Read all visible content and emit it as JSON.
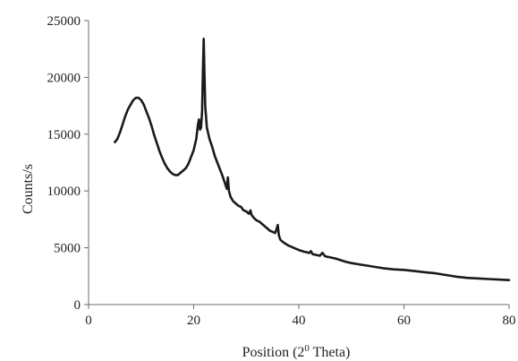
{
  "chart_data": {
    "type": "line",
    "title": "",
    "xlabel": "Position (2",
    "xlabel_sup": "0",
    "xlabel_tail": " Theta)",
    "ylabel": "Counts/s",
    "xlim": [
      0,
      80
    ],
    "ylim": [
      0,
      25000
    ],
    "xticks": [
      0,
      20,
      40,
      60,
      80
    ],
    "yticks": [
      0,
      5000,
      10000,
      15000,
      20000,
      25000
    ],
    "grid": false,
    "legend": "none",
    "series": [
      {
        "color": "#1a1a1a",
        "points": [
          [
            5,
            14300
          ],
          [
            5.5,
            14600
          ],
          [
            6,
            15200
          ],
          [
            6.5,
            15900
          ],
          [
            7,
            16600
          ],
          [
            7.5,
            17200
          ],
          [
            8,
            17600
          ],
          [
            8.5,
            18000
          ],
          [
            9,
            18200
          ],
          [
            9.5,
            18200
          ],
          [
            10,
            18000
          ],
          [
            10.5,
            17600
          ],
          [
            11,
            17000
          ],
          [
            11.5,
            16400
          ],
          [
            12,
            15700
          ],
          [
            12.5,
            14900
          ],
          [
            13,
            14200
          ],
          [
            13.5,
            13500
          ],
          [
            14,
            12900
          ],
          [
            14.5,
            12400
          ],
          [
            15,
            12000
          ],
          [
            15.5,
            11700
          ],
          [
            16,
            11500
          ],
          [
            16.5,
            11400
          ],
          [
            17,
            11400
          ],
          [
            17.5,
            11600
          ],
          [
            18,
            11800
          ],
          [
            18.5,
            12000
          ],
          [
            19,
            12400
          ],
          [
            19.5,
            13000
          ],
          [
            20,
            13600
          ],
          [
            20.5,
            14600
          ],
          [
            20.8,
            15800
          ],
          [
            21.0,
            16300
          ],
          [
            21.2,
            15400
          ],
          [
            21.4,
            15600
          ],
          [
            21.6,
            17000
          ],
          [
            21.75,
            20500
          ],
          [
            21.9,
            23400
          ],
          [
            22.05,
            20500
          ],
          [
            22.2,
            17500
          ],
          [
            22.5,
            15600
          ],
          [
            23,
            14600
          ],
          [
            23.5,
            13900
          ],
          [
            24,
            13100
          ],
          [
            24.5,
            12500
          ],
          [
            25,
            11900
          ],
          [
            25.5,
            11300
          ],
          [
            26,
            10600
          ],
          [
            26.3,
            10200
          ],
          [
            26.5,
            11200
          ],
          [
            26.7,
            10000
          ],
          [
            27,
            9500
          ],
          [
            27.5,
            9100
          ],
          [
            28,
            8900
          ],
          [
            28.5,
            8700
          ],
          [
            29,
            8600
          ],
          [
            29.5,
            8300
          ],
          [
            30,
            8200
          ],
          [
            30.5,
            8000
          ],
          [
            30.8,
            8300
          ],
          [
            31,
            7900
          ],
          [
            31.5,
            7600
          ],
          [
            32,
            7400
          ],
          [
            32.5,
            7300
          ],
          [
            33,
            7100
          ],
          [
            33.5,
            6900
          ],
          [
            34,
            6700
          ],
          [
            34.5,
            6500
          ],
          [
            35,
            6400
          ],
          [
            35.5,
            6300
          ],
          [
            35.8,
            6700
          ],
          [
            36,
            7000
          ],
          [
            36.2,
            6100
          ],
          [
            36.5,
            5700
          ],
          [
            37,
            5500
          ],
          [
            38,
            5200
          ],
          [
            39,
            5000
          ],
          [
            40,
            4800
          ],
          [
            41,
            4650
          ],
          [
            42,
            4550
          ],
          [
            42.3,
            4700
          ],
          [
            42.6,
            4450
          ],
          [
            43,
            4400
          ],
          [
            44,
            4300
          ],
          [
            44.5,
            4550
          ],
          [
            45,
            4250
          ],
          [
            46,
            4150
          ],
          [
            47,
            4050
          ],
          [
            48,
            3900
          ],
          [
            49,
            3750
          ],
          [
            50,
            3650
          ],
          [
            52,
            3500
          ],
          [
            54,
            3350
          ],
          [
            56,
            3200
          ],
          [
            58,
            3100
          ],
          [
            60,
            3050
          ],
          [
            62,
            2950
          ],
          [
            64,
            2850
          ],
          [
            66,
            2750
          ],
          [
            68,
            2600
          ],
          [
            70,
            2450
          ],
          [
            72,
            2350
          ],
          [
            74,
            2300
          ],
          [
            76,
            2250
          ],
          [
            78,
            2200
          ],
          [
            80,
            2150
          ]
        ]
      }
    ]
  }
}
